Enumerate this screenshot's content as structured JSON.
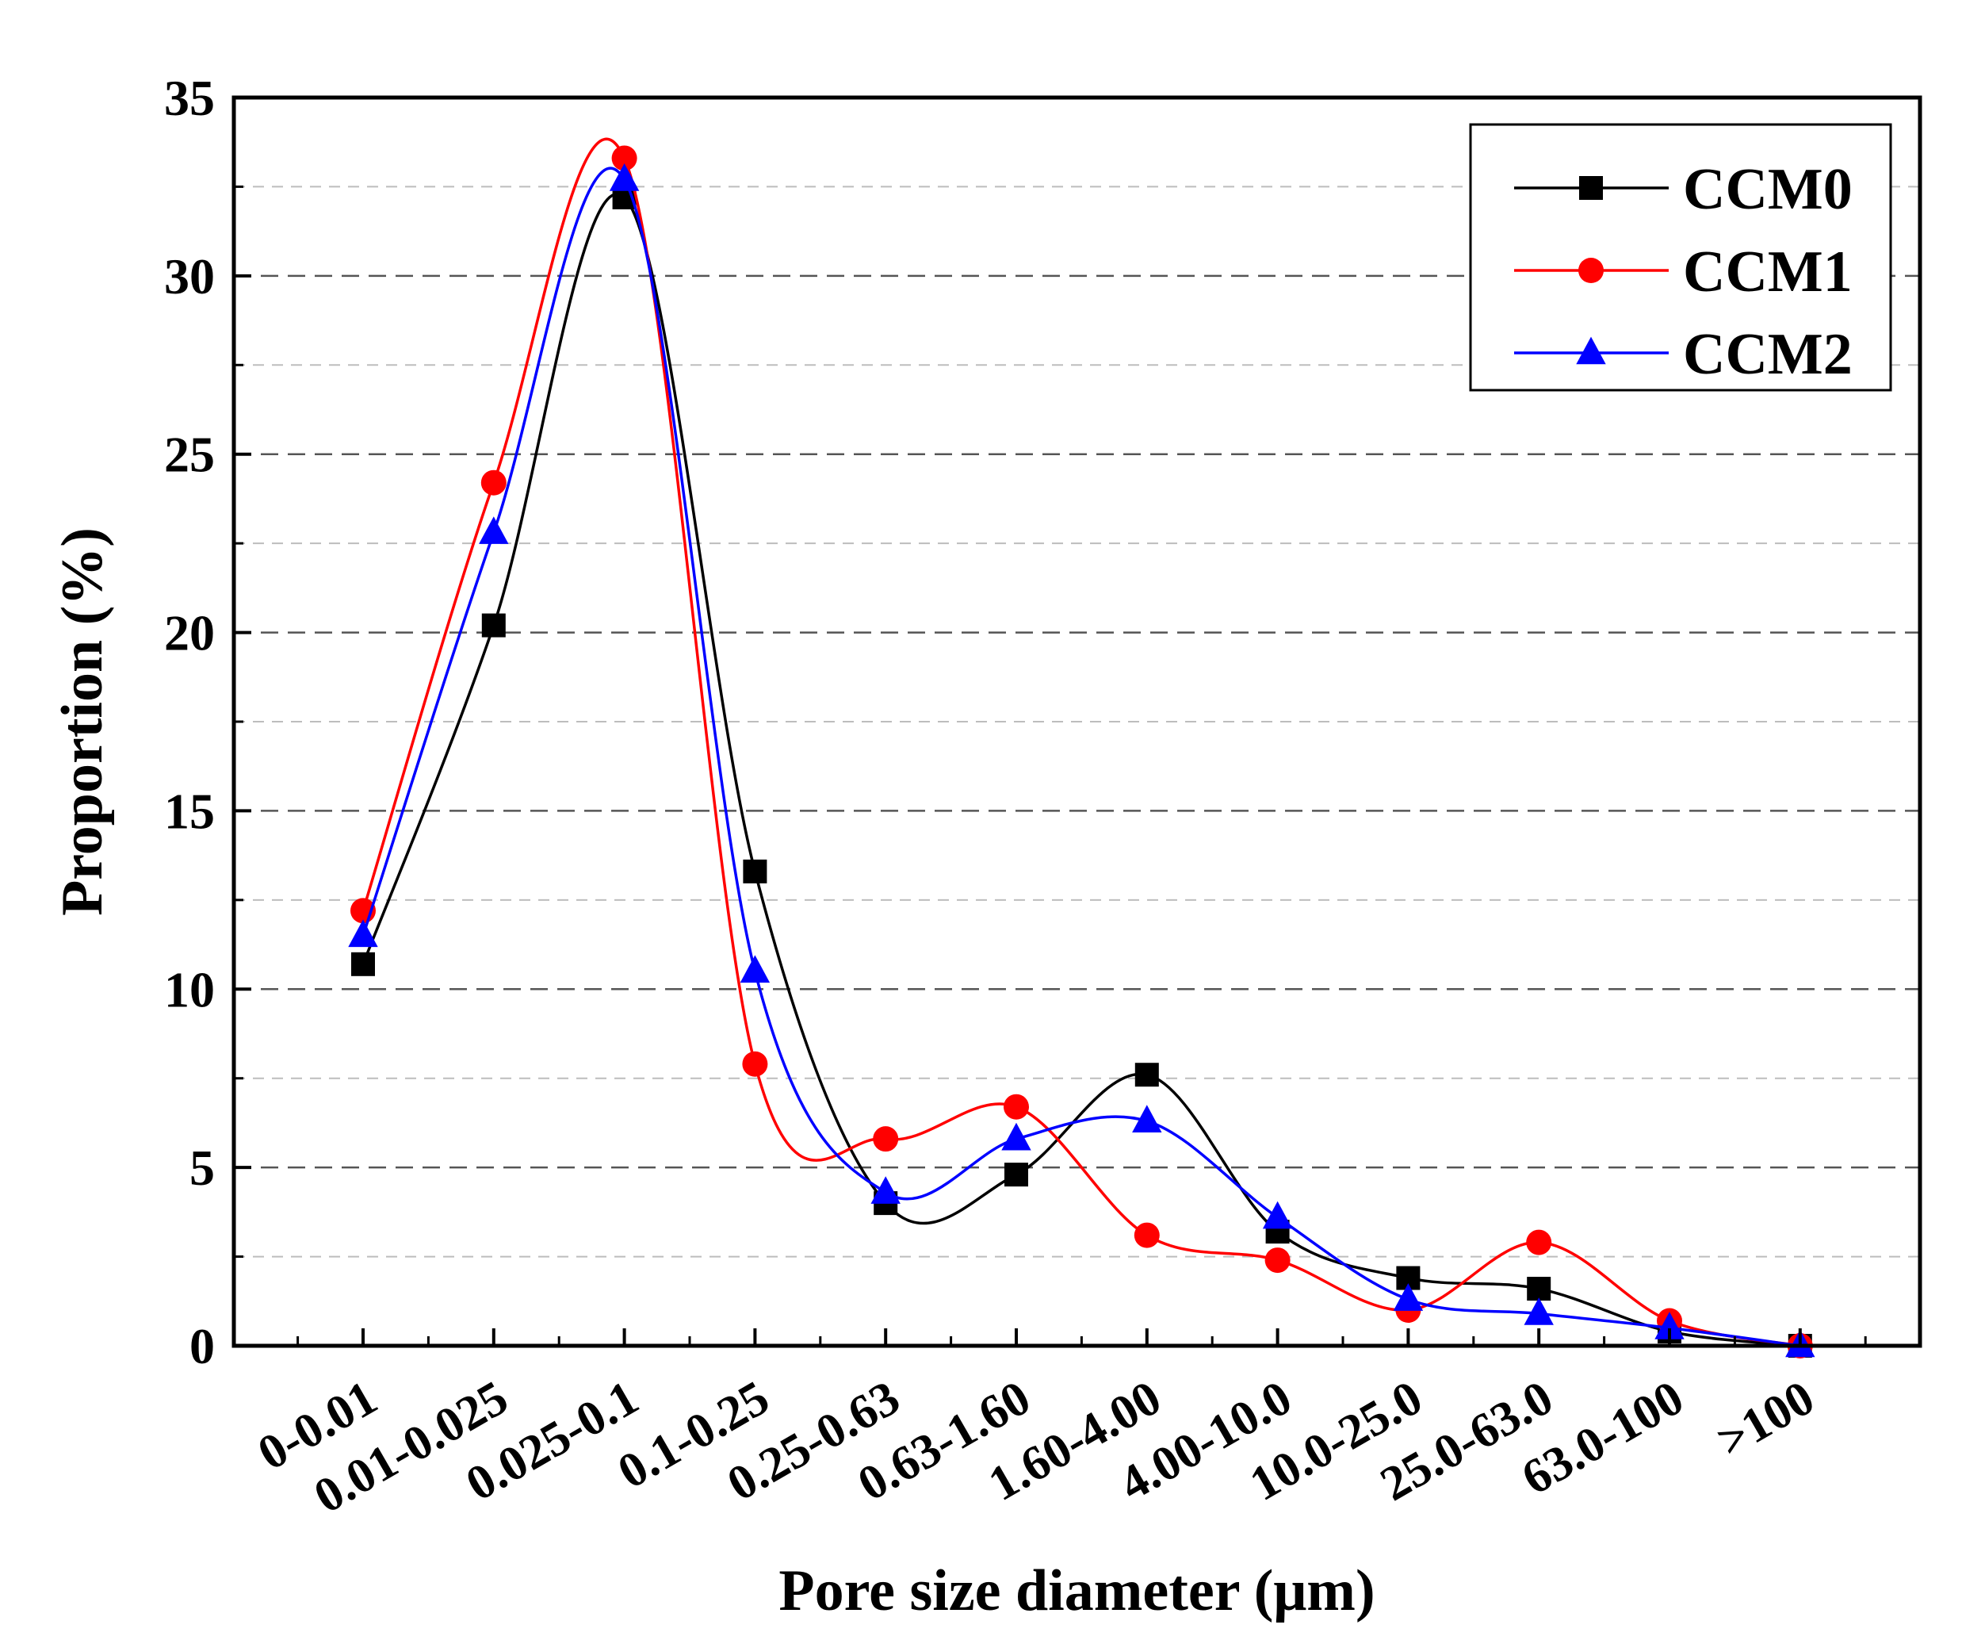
{
  "chart_data": {
    "type": "line",
    "title": "",
    "xlabel": "Pore size diameter (μm)",
    "ylabel": "Proportion (%)",
    "ylim": [
      0,
      35
    ],
    "yticks": [
      0,
      5,
      10,
      15,
      20,
      25,
      30,
      35
    ],
    "grid": "horizontal dashed",
    "legend_position": "top-right",
    "categories": [
      "0-0.01",
      "0.01-0.025",
      "0.025-0.1",
      "0.1-0.25",
      "0.25-0.63",
      "0.63-1.60",
      "1.60-4.00",
      "4.00-10.0",
      "10.0-25.0",
      "25.0-63.0",
      "63.0-100",
      ">100"
    ],
    "series": [
      {
        "name": "CCM0",
        "color": "#000000",
        "marker": "square",
        "values": [
          10.7,
          20.2,
          32.2,
          13.3,
          4.0,
          4.8,
          7.6,
          3.2,
          1.9,
          1.6,
          0.4,
          0.0
        ]
      },
      {
        "name": "CCM1",
        "color": "#ff0000",
        "marker": "circle",
        "values": [
          12.2,
          24.2,
          33.3,
          7.9,
          5.8,
          6.7,
          3.1,
          2.4,
          1.0,
          2.9,
          0.7,
          0.0
        ]
      },
      {
        "name": "CCM2",
        "color": "#0000ff",
        "marker": "triangle",
        "values": [
          11.5,
          22.8,
          32.7,
          10.5,
          4.3,
          5.8,
          6.3,
          3.6,
          1.3,
          0.9,
          0.5,
          0.0
        ]
      }
    ]
  }
}
